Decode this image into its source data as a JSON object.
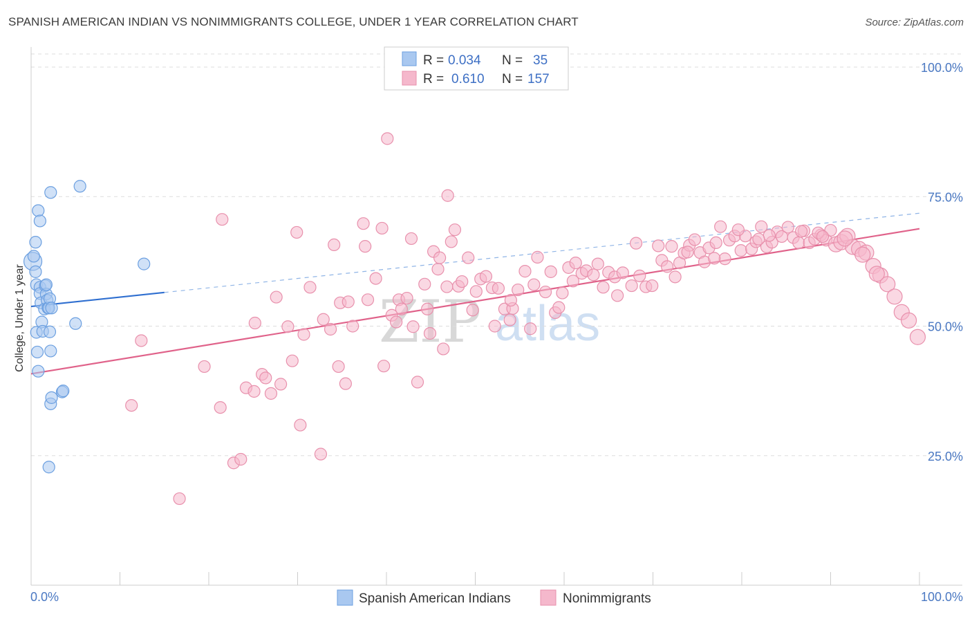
{
  "header": {
    "title": "SPANISH AMERICAN INDIAN VS NONIMMIGRANTS COLLEGE, UNDER 1 YEAR CORRELATION CHART",
    "source": "Source: ZipAtlas.com"
  },
  "watermark": {
    "zip": "ZIP",
    "atlas": "atlas"
  },
  "colors": {
    "blue_fill": "#a9c8f0",
    "blue_stroke": "#6b9fe0",
    "blue_line": "#2f6fd0",
    "pink_fill": "#f5b8cc",
    "pink_stroke": "#e890ac",
    "pink_line": "#e0628a",
    "grid": "#dddddd",
    "tick_label": "#4a78c2"
  },
  "stats_legend": {
    "rows": [
      {
        "r_label": "R =",
        "r_value": "0.034",
        "n_label": "N =",
        "n_value": "35"
      },
      {
        "r_label": "R =",
        "r_value": "0.610",
        "n_label": "N =",
        "n_value": "157"
      }
    ]
  },
  "chart_data": {
    "type": "scatter",
    "title": "SPANISH AMERICAN INDIAN VS NONIMMIGRANTS COLLEGE, UNDER 1 YEAR CORRELATION CHART",
    "xlabel": "",
    "ylabel": "College, Under 1 year",
    "xlim": [
      0,
      100
    ],
    "ylim": [
      0,
      100
    ],
    "x_tick_labels": [
      "0.0%",
      "100.0%"
    ],
    "y_ticks": [
      25,
      50,
      75,
      100
    ],
    "y_tick_labels": [
      "25.0%",
      "50.0%",
      "75.0%",
      "100.0%"
    ],
    "legend_position": "top-center",
    "series": [
      {
        "name": "Spanish American Indians",
        "r": 0.034,
        "n": 35,
        "trend": {
          "x0": 0,
          "y0": 53.8,
          "x1": 15,
          "y1": 56.5,
          "dashed_to_x": 100,
          "dashed_to_y": 71.8
        },
        "points": [
          [
            0.2,
            62.5
          ],
          [
            0.3,
            63.5
          ],
          [
            0.5,
            66.2
          ],
          [
            0.5,
            60.5
          ],
          [
            0.6,
            58.0
          ],
          [
            0.6,
            48.8
          ],
          [
            0.7,
            45.0
          ],
          [
            0.8,
            41.3
          ],
          [
            0.8,
            72.3
          ],
          [
            1.0,
            70.3
          ],
          [
            1.0,
            57.5
          ],
          [
            1.0,
            56.3
          ],
          [
            1.1,
            54.5
          ],
          [
            1.2,
            50.8
          ],
          [
            1.3,
            49.0
          ],
          [
            1.5,
            53.3
          ],
          [
            1.6,
            57.8
          ],
          [
            1.7,
            56.2
          ],
          [
            1.7,
            58.0
          ],
          [
            1.8,
            55.0
          ],
          [
            1.9,
            53.5
          ],
          [
            2.0,
            53.5
          ],
          [
            2.0,
            22.8
          ],
          [
            2.1,
            55.3
          ],
          [
            2.1,
            48.9
          ],
          [
            2.2,
            35.0
          ],
          [
            2.3,
            53.5
          ],
          [
            2.2,
            75.8
          ],
          [
            2.2,
            45.2
          ],
          [
            2.3,
            36.2
          ],
          [
            3.5,
            37.3
          ],
          [
            3.6,
            37.5
          ],
          [
            5.0,
            50.5
          ],
          [
            5.5,
            77.0
          ],
          [
            12.7,
            62.0
          ]
        ]
      },
      {
        "name": "Nonimmigrants",
        "r": 0.61,
        "n": 157,
        "trend": {
          "x0": 0,
          "y0": 40.8,
          "x1": 100,
          "y1": 68.8
        },
        "points": [
          [
            11.3,
            34.7
          ],
          [
            12.4,
            47.2
          ],
          [
            16.7,
            16.7
          ],
          [
            19.5,
            42.2
          ],
          [
            21.3,
            34.3
          ],
          [
            21.5,
            70.6
          ],
          [
            22.8,
            23.6
          ],
          [
            23.6,
            24.3
          ],
          [
            24.2,
            38.1
          ],
          [
            25.1,
            37.4
          ],
          [
            25.2,
            50.6
          ],
          [
            26.0,
            40.7
          ],
          [
            26.4,
            40.0
          ],
          [
            27.0,
            37.0
          ],
          [
            27.6,
            55.6
          ],
          [
            28.1,
            38.8
          ],
          [
            28.9,
            49.9
          ],
          [
            29.4,
            43.3
          ],
          [
            29.9,
            68.1
          ],
          [
            30.3,
            30.9
          ],
          [
            30.7,
            48.4
          ],
          [
            31.4,
            57.5
          ],
          [
            32.6,
            25.3
          ],
          [
            32.9,
            51.3
          ],
          [
            33.7,
            49.4
          ],
          [
            34.1,
            65.7
          ],
          [
            34.6,
            42.2
          ],
          [
            34.8,
            54.5
          ],
          [
            35.4,
            38.9
          ],
          [
            35.7,
            54.7
          ],
          [
            36.2,
            50.0
          ],
          [
            37.4,
            69.8
          ],
          [
            37.6,
            65.4
          ],
          [
            37.9,
            55.1
          ],
          [
            38.8,
            59.2
          ],
          [
            39.5,
            68.9
          ],
          [
            39.7,
            42.3
          ],
          [
            40.1,
            86.2
          ],
          [
            40.6,
            52.1
          ],
          [
            41.1,
            50.8
          ],
          [
            41.4,
            55.1
          ],
          [
            41.7,
            53.3
          ],
          [
            42.3,
            55.4
          ],
          [
            42.8,
            66.9
          ],
          [
            43.0,
            49.9
          ],
          [
            43.5,
            39.2
          ],
          [
            44.3,
            58.1
          ],
          [
            44.6,
            53.3
          ],
          [
            44.9,
            48.6
          ],
          [
            45.3,
            64.4
          ],
          [
            46.0,
            63.2
          ],
          [
            46.4,
            45.6
          ],
          [
            46.8,
            57.6
          ],
          [
            46.9,
            75.2
          ],
          [
            47.3,
            66.3
          ],
          [
            47.7,
            68.6
          ],
          [
            48.1,
            57.7
          ],
          [
            48.5,
            58.6
          ],
          [
            49.2,
            63.2
          ],
          [
            49.7,
            53.1
          ],
          [
            50.1,
            56.7
          ],
          [
            50.6,
            59.1
          ],
          [
            51.2,
            59.6
          ],
          [
            51.9,
            57.4
          ],
          [
            52.2,
            50.0
          ],
          [
            52.6,
            57.3
          ],
          [
            53.3,
            53.3
          ],
          [
            53.9,
            51.2
          ],
          [
            54.2,
            53.4
          ],
          [
            54.8,
            57.0
          ],
          [
            55.6,
            60.6
          ],
          [
            56.2,
            49.5
          ],
          [
            56.6,
            58.0
          ],
          [
            57.0,
            63.3
          ],
          [
            57.9,
            56.6
          ],
          [
            58.5,
            60.5
          ],
          [
            59.0,
            52.6
          ],
          [
            59.4,
            53.6
          ],
          [
            59.8,
            56.4
          ],
          [
            60.5,
            61.3
          ],
          [
            61.0,
            58.7
          ],
          [
            61.3,
            62.2
          ],
          [
            62.0,
            60.2
          ],
          [
            62.5,
            60.7
          ],
          [
            63.3,
            59.9
          ],
          [
            64.4,
            57.5
          ],
          [
            65.0,
            60.4
          ],
          [
            65.7,
            59.5
          ],
          [
            66.0,
            55.9
          ],
          [
            66.6,
            60.3
          ],
          [
            67.6,
            57.8
          ],
          [
            68.5,
            59.7
          ],
          [
            69.2,
            57.6
          ],
          [
            69.9,
            57.8
          ],
          [
            70.6,
            65.5
          ],
          [
            71.0,
            62.7
          ],
          [
            71.6,
            61.5
          ],
          [
            72.1,
            65.4
          ],
          [
            72.5,
            59.5
          ],
          [
            73.0,
            62.2
          ],
          [
            73.5,
            64.1
          ],
          [
            74.1,
            65.6
          ],
          [
            74.7,
            66.7
          ],
          [
            75.3,
            64.2
          ],
          [
            75.8,
            62.4
          ],
          [
            76.3,
            65.1
          ],
          [
            77.1,
            66.1
          ],
          [
            77.6,
            69.2
          ],
          [
            78.1,
            63.0
          ],
          [
            78.6,
            66.6
          ],
          [
            79.2,
            67.4
          ],
          [
            79.9,
            64.6
          ],
          [
            80.4,
            67.4
          ],
          [
            81.1,
            64.9
          ],
          [
            81.6,
            66.3
          ],
          [
            82.2,
            69.2
          ],
          [
            82.8,
            65.3
          ],
          [
            83.4,
            66.2
          ],
          [
            84.0,
            68.2
          ],
          [
            84.5,
            67.3
          ],
          [
            85.2,
            69.1
          ],
          [
            85.8,
            67.1
          ],
          [
            86.4,
            66.1
          ],
          [
            87.0,
            68.4
          ],
          [
            87.6,
            66.1
          ],
          [
            88.2,
            66.8
          ],
          [
            88.9,
            67.6
          ],
          [
            89.5,
            66.6
          ],
          [
            90.0,
            68.5
          ],
          [
            90.6,
            65.8
          ],
          [
            91.2,
            66.2
          ],
          [
            91.9,
            67.4
          ],
          [
            92.5,
            65.3
          ],
          [
            93.2,
            64.9
          ],
          [
            94.0,
            64.2
          ],
          [
            94.8,
            61.6
          ],
          [
            95.6,
            59.8
          ],
          [
            96.4,
            58.1
          ],
          [
            97.2,
            55.7
          ],
          [
            98.0,
            52.7
          ],
          [
            98.8,
            51.1
          ],
          [
            99.8,
            47.9
          ],
          [
            73.9,
            64.3
          ],
          [
            76.9,
            63.1
          ],
          [
            79.6,
            68.6
          ],
          [
            83.1,
            67.5
          ],
          [
            86.7,
            68.3
          ],
          [
            88.6,
            68.0
          ],
          [
            91.6,
            66.9
          ],
          [
            93.6,
            63.8
          ],
          [
            95.2,
            60.1
          ],
          [
            54.0,
            55.0
          ],
          [
            45.8,
            61.0
          ],
          [
            63.8,
            62.0
          ],
          [
            68.1,
            66.0
          ],
          [
            81.9,
            66.8
          ],
          [
            89.1,
            67.3
          ]
        ]
      }
    ]
  }
}
